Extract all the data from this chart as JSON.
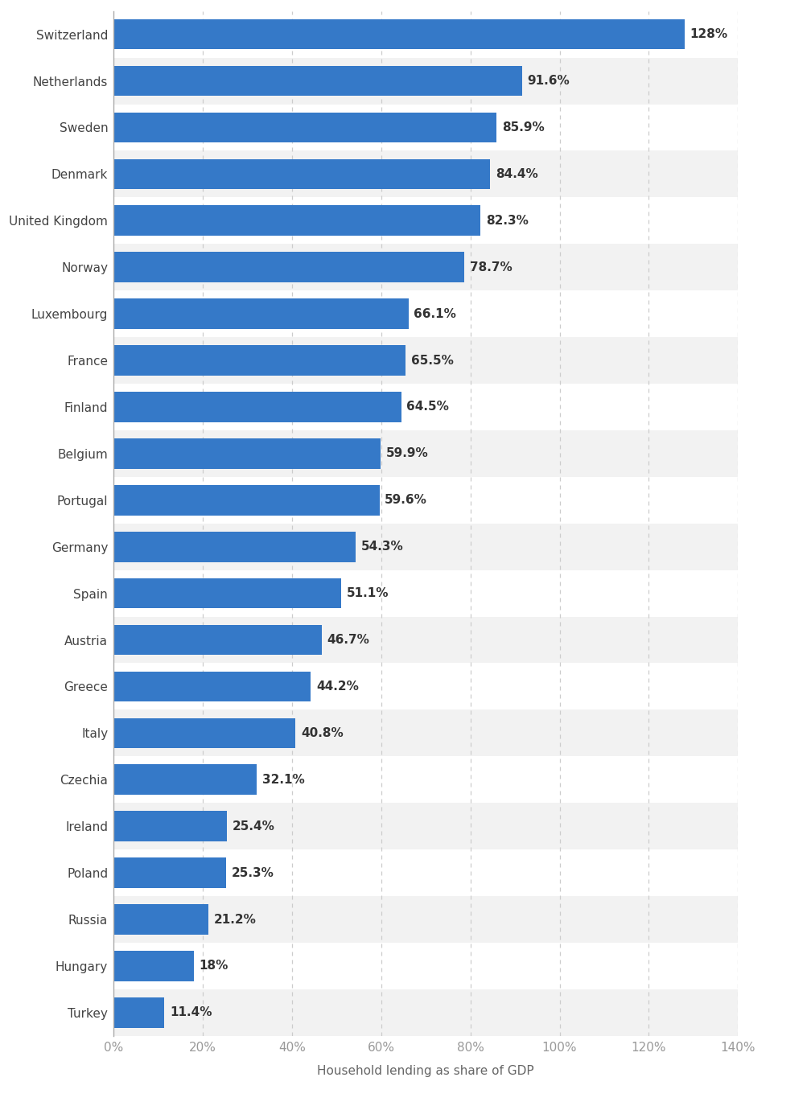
{
  "countries": [
    "Switzerland",
    "Netherlands",
    "Sweden",
    "Denmark",
    "United Kingdom",
    "Norway",
    "Luxembourg",
    "France",
    "Finland",
    "Belgium",
    "Portugal",
    "Germany",
    "Spain",
    "Austria",
    "Greece",
    "Italy",
    "Czechia",
    "Ireland",
    "Poland",
    "Russia",
    "Hungary",
    "Turkey"
  ],
  "values": [
    128,
    91.6,
    85.9,
    84.4,
    82.3,
    78.7,
    66.1,
    65.5,
    64.5,
    59.9,
    59.6,
    54.3,
    51.1,
    46.7,
    44.2,
    40.8,
    32.1,
    25.4,
    25.3,
    21.2,
    18,
    11.4
  ],
  "labels": [
    "128%",
    "91.6%",
    "85.9%",
    "84.4%",
    "82.3%",
    "78.7%",
    "66.1%",
    "65.5%",
    "64.5%",
    "59.9%",
    "59.6%",
    "54.3%",
    "51.1%",
    "46.7%",
    "44.2%",
    "40.8%",
    "32.1%",
    "25.4%",
    "25.3%",
    "21.2%",
    "18%",
    "11.4%"
  ],
  "bar_color": "#3579c8",
  "background_color": "#ffffff",
  "row_odd_color": "#f2f2f2",
  "row_even_color": "#ffffff",
  "xlabel": "Household lending as share of GDP",
  "xlim": [
    0,
    140
  ],
  "xticks": [
    0,
    20,
    40,
    60,
    80,
    100,
    120,
    140
  ],
  "xticklabels": [
    "0%",
    "20%",
    "40%",
    "60%",
    "80%",
    "100%",
    "120%",
    "140%"
  ],
  "tick_label_color": "#999999",
  "grid_color": "#cccccc",
  "ylabel_fontsize": 11,
  "tick_fontsize": 11,
  "xlabel_fontsize": 11,
  "value_label_fontsize": 11,
  "bar_height": 0.65
}
